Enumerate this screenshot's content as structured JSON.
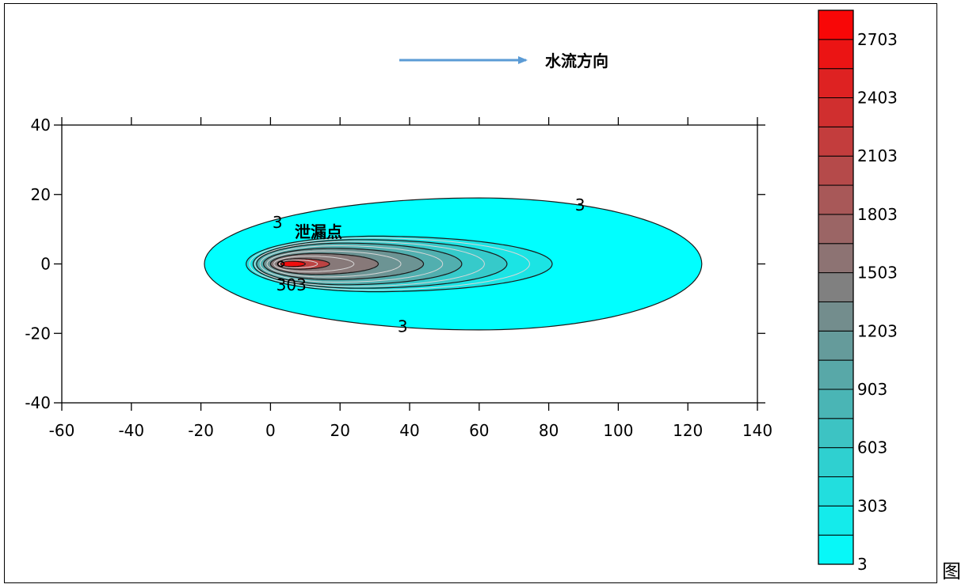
{
  "annotations": {
    "flow_direction": "水流方向",
    "leak_point": "泄漏点"
  },
  "trailing_char": "图",
  "colors": {
    "low": "#00ffff",
    "mid": "#808080",
    "high": "#ff0000",
    "arrow": "#5b9bd5"
  },
  "chart_data": {
    "type": "contour",
    "title": "",
    "xlabel": "",
    "ylabel": "",
    "xlim": [
      -60,
      140
    ],
    "ylim": [
      -40,
      40
    ],
    "x_ticks": [
      -60,
      -40,
      -20,
      0,
      20,
      40,
      60,
      80,
      100,
      120,
      140
    ],
    "y_ticks": [
      40,
      20,
      0,
      -20,
      -40
    ],
    "grid": false,
    "source": {
      "x": 3,
      "y": 0
    },
    "contour_levels": [
      3,
      153,
      303,
      453,
      603,
      753,
      903,
      1053,
      1203,
      1353,
      1503,
      1653,
      1803,
      1953,
      2103,
      2253,
      2403,
      2553,
      2703,
      2853
    ],
    "contour_labels": [
      {
        "text": "3",
        "x": 2,
        "y": 12
      },
      {
        "text": "3",
        "x": 89,
        "y": 17
      },
      {
        "text": "3",
        "x": 38,
        "y": -18
      },
      {
        "text": "303",
        "x": 6,
        "y": -6
      }
    ],
    "plume_extents": [
      {
        "level": 3,
        "x_min": -19,
        "x_max": 124,
        "y_center_x": 60,
        "half_width": 19
      },
      {
        "level": 303,
        "x_min": -7,
        "x_max": 81,
        "y_center_x": 30,
        "half_width": 8
      },
      {
        "level": 603,
        "x_min": -5,
        "x_max": 68,
        "half_width": 7
      },
      {
        "level": 903,
        "x_min": -4,
        "x_max": 55,
        "half_width": 6
      },
      {
        "level": 1203,
        "x_min": -2,
        "x_max": 44,
        "half_width": 4.5
      },
      {
        "level": 1503,
        "x_min": 0,
        "x_max": 31,
        "half_width": 3
      },
      {
        "level": 2103,
        "x_min": 2,
        "x_max": 17,
        "half_width": 1.5
      },
      {
        "level": 2703,
        "x_min": 3,
        "x_max": 10,
        "half_width": 0.8
      }
    ],
    "colorbar": {
      "min": 3,
      "max": 2853,
      "step": 150,
      "tick_labels": [
        "2703",
        "2403",
        "2103",
        "1803",
        "1503",
        "1203",
        "903",
        "603",
        "303",
        "3"
      ]
    }
  }
}
